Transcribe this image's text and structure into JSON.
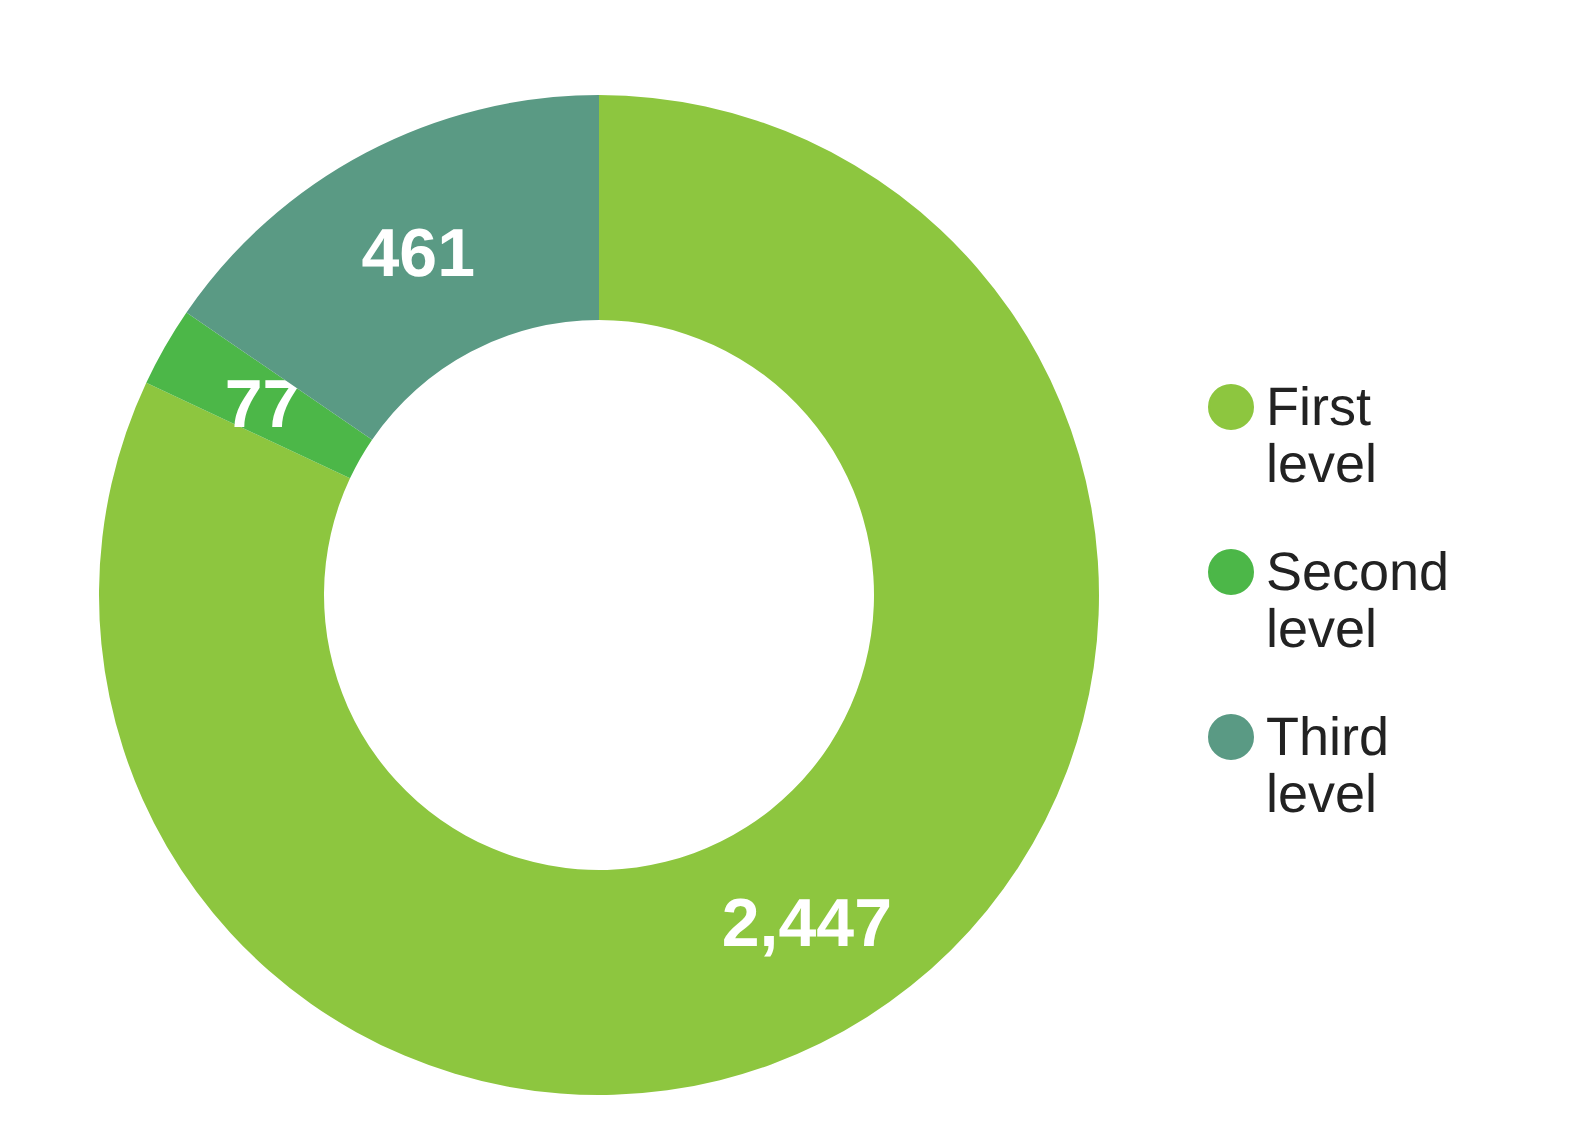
{
  "chart_data": {
    "type": "donut",
    "categories": [
      "First level",
      "Second level",
      "Third level"
    ],
    "values": [
      2447,
      77,
      461
    ],
    "colors": [
      "#8dc63f",
      "#4cb748",
      "#5a9a84"
    ],
    "value_labels": [
      "2,447",
      "77",
      "461"
    ],
    "legend": "right"
  }
}
